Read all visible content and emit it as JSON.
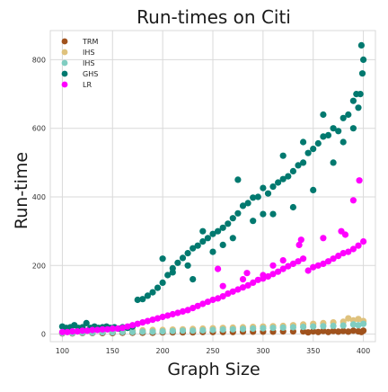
{
  "chart_data": {
    "type": "scatter",
    "title": "Run-times on Citi",
    "xlabel": "Graph Size",
    "ylabel": "Run-time",
    "xlim": [
      88,
      412
    ],
    "ylim": [
      -22,
      885
    ],
    "xticks": [
      100,
      150,
      200,
      250,
      300,
      350,
      400
    ],
    "yticks": [
      0,
      200,
      400,
      600,
      800
    ],
    "grid": true,
    "legend_position": "top-left",
    "series": [
      {
        "name": "TRM",
        "color": "#a0521d",
        "points": [
          [
            100,
            2
          ],
          [
            110,
            2
          ],
          [
            120,
            3
          ],
          [
            130,
            3
          ],
          [
            140,
            3
          ],
          [
            150,
            3
          ],
          [
            160,
            4
          ],
          [
            170,
            4
          ],
          [
            180,
            4
          ],
          [
            190,
            4
          ],
          [
            200,
            5
          ],
          [
            210,
            5
          ],
          [
            220,
            5
          ],
          [
            230,
            5
          ],
          [
            240,
            6
          ],
          [
            250,
            6
          ],
          [
            260,
            6
          ],
          [
            270,
            6
          ],
          [
            280,
            7
          ],
          [
            290,
            7
          ],
          [
            300,
            7
          ],
          [
            310,
            7
          ],
          [
            320,
            8
          ],
          [
            330,
            8
          ],
          [
            340,
            8
          ],
          [
            350,
            8
          ],
          [
            360,
            9
          ],
          [
            370,
            9
          ],
          [
            380,
            9
          ],
          [
            390,
            10
          ],
          [
            400,
            10
          ],
          [
            345,
            5
          ],
          [
            355,
            6
          ],
          [
            365,
            6
          ],
          [
            375,
            7
          ],
          [
            385,
            7
          ],
          [
            395,
            8
          ],
          [
            398,
            6
          ]
        ]
      },
      {
        "name": "IHS",
        "color": "#dfc27d",
        "points": [
          [
            100,
            4
          ],
          [
            110,
            5
          ],
          [
            120,
            6
          ],
          [
            130,
            6
          ],
          [
            140,
            7
          ],
          [
            150,
            8
          ],
          [
            160,
            9
          ],
          [
            170,
            10
          ],
          [
            180,
            11
          ],
          [
            190,
            12
          ],
          [
            200,
            12
          ],
          [
            210,
            13
          ],
          [
            220,
            14
          ],
          [
            230,
            15
          ],
          [
            240,
            16
          ],
          [
            250,
            17
          ],
          [
            260,
            18
          ],
          [
            270,
            19
          ],
          [
            280,
            20
          ],
          [
            290,
            21
          ],
          [
            300,
            22
          ],
          [
            310,
            23
          ],
          [
            320,
            24
          ],
          [
            330,
            26
          ],
          [
            340,
            28
          ],
          [
            350,
            30
          ],
          [
            360,
            32
          ],
          [
            370,
            34
          ],
          [
            380,
            36
          ],
          [
            390,
            40
          ],
          [
            400,
            38
          ],
          [
            385,
            46
          ],
          [
            395,
            44
          ]
        ]
      },
      {
        "name": "IHS",
        "color": "#80cdc1",
        "points": [
          [
            100,
            3
          ],
          [
            110,
            3
          ],
          [
            120,
            4
          ],
          [
            130,
            4
          ],
          [
            140,
            5
          ],
          [
            150,
            5
          ],
          [
            160,
            6
          ],
          [
            170,
            6
          ],
          [
            180,
            7
          ],
          [
            190,
            7
          ],
          [
            200,
            8
          ],
          [
            210,
            9
          ],
          [
            220,
            10
          ],
          [
            230,
            10
          ],
          [
            240,
            11
          ],
          [
            250,
            12
          ],
          [
            260,
            13
          ],
          [
            270,
            14
          ],
          [
            280,
            15
          ],
          [
            290,
            16
          ],
          [
            300,
            17
          ],
          [
            310,
            18
          ],
          [
            320,
            19
          ],
          [
            330,
            20
          ],
          [
            340,
            21
          ],
          [
            350,
            22
          ],
          [
            360,
            23
          ],
          [
            370,
            24
          ],
          [
            380,
            25
          ],
          [
            390,
            28
          ],
          [
            400,
            30
          ],
          [
            395,
            26
          ]
        ]
      },
      {
        "name": "GHS",
        "color": "#01796f",
        "points": [
          [
            100,
            22
          ],
          [
            104,
            18
          ],
          [
            108,
            20
          ],
          [
            112,
            26
          ],
          [
            116,
            18
          ],
          [
            120,
            20
          ],
          [
            124,
            32
          ],
          [
            128,
            18
          ],
          [
            132,
            22
          ],
          [
            136,
            18
          ],
          [
            140,
            20
          ],
          [
            144,
            22
          ],
          [
            148,
            18
          ],
          [
            152,
            20
          ],
          [
            156,
            16
          ],
          [
            160,
            20
          ],
          [
            165,
            18
          ],
          [
            170,
            22
          ],
          [
            175,
            100
          ],
          [
            180,
            102
          ],
          [
            185,
            112
          ],
          [
            190,
            122
          ],
          [
            195,
            135
          ],
          [
            200,
            150
          ],
          [
            205,
            172
          ],
          [
            210,
            192
          ],
          [
            215,
            208
          ],
          [
            220,
            222
          ],
          [
            225,
            236
          ],
          [
            230,
            250
          ],
          [
            235,
            258
          ],
          [
            240,
            270
          ],
          [
            245,
            280
          ],
          [
            250,
            292
          ],
          [
            255,
            300
          ],
          [
            260,
            310
          ],
          [
            265,
            322
          ],
          [
            270,
            338
          ],
          [
            275,
            352
          ],
          [
            280,
            374
          ],
          [
            285,
            382
          ],
          [
            290,
            398
          ],
          [
            295,
            400
          ],
          [
            300,
            426
          ],
          [
            305,
            410
          ],
          [
            310,
            430
          ],
          [
            315,
            442
          ],
          [
            320,
            452
          ],
          [
            325,
            460
          ],
          [
            330,
            475
          ],
          [
            335,
            492
          ],
          [
            340,
            500
          ],
          [
            345,
            528
          ],
          [
            350,
            540
          ],
          [
            355,
            556
          ],
          [
            360,
            576
          ],
          [
            365,
            580
          ],
          [
            370,
            600
          ],
          [
            375,
            592
          ],
          [
            380,
            630
          ],
          [
            385,
            640
          ],
          [
            390,
            680
          ],
          [
            393,
            700
          ],
          [
            395,
            660
          ],
          [
            397,
            700
          ],
          [
            399,
            760
          ],
          [
            400,
            800
          ],
          [
            398,
            842
          ],
          [
            210,
            180
          ],
          [
            230,
            160
          ],
          [
            250,
            240
          ],
          [
            270,
            280
          ],
          [
            290,
            330
          ],
          [
            310,
            350
          ],
          [
            330,
            370
          ],
          [
            350,
            420
          ],
          [
            370,
            500
          ],
          [
            390,
            600
          ],
          [
            320,
            520
          ],
          [
            340,
            560
          ],
          [
            360,
            640
          ],
          [
            275,
            450
          ],
          [
            225,
            200
          ],
          [
            200,
            220
          ],
          [
            240,
            300
          ],
          [
            260,
            260
          ],
          [
            300,
            350
          ],
          [
            380,
            560
          ]
        ]
      },
      {
        "name": "LR",
        "color": "#ff00ff",
        "points": [
          [
            100,
            6
          ],
          [
            105,
            6
          ],
          [
            110,
            8
          ],
          [
            115,
            8
          ],
          [
            120,
            10
          ],
          [
            125,
            10
          ],
          [
            130,
            12
          ],
          [
            135,
            12
          ],
          [
            140,
            14
          ],
          [
            145,
            14
          ],
          [
            150,
            16
          ],
          [
            155,
            16
          ],
          [
            160,
            18
          ],
          [
            165,
            22
          ],
          [
            170,
            26
          ],
          [
            175,
            30
          ],
          [
            180,
            34
          ],
          [
            185,
            38
          ],
          [
            190,
            42
          ],
          [
            195,
            46
          ],
          [
            200,
            50
          ],
          [
            205,
            54
          ],
          [
            210,
            58
          ],
          [
            215,
            62
          ],
          [
            220,
            66
          ],
          [
            225,
            70
          ],
          [
            230,
            76
          ],
          [
            235,
            82
          ],
          [
            240,
            88
          ],
          [
            245,
            94
          ],
          [
            250,
            100
          ],
          [
            255,
            104
          ],
          [
            260,
            110
          ],
          [
            265,
            118
          ],
          [
            270,
            124
          ],
          [
            275,
            130
          ],
          [
            280,
            136
          ],
          [
            285,
            142
          ],
          [
            290,
            150
          ],
          [
            295,
            158
          ],
          [
            300,
            162
          ],
          [
            305,
            168
          ],
          [
            310,
            175
          ],
          [
            315,
            182
          ],
          [
            320,
            190
          ],
          [
            325,
            198
          ],
          [
            330,
            205
          ],
          [
            335,
            212
          ],
          [
            340,
            220
          ],
          [
            345,
            185
          ],
          [
            350,
            195
          ],
          [
            355,
            200
          ],
          [
            360,
            205
          ],
          [
            365,
            212
          ],
          [
            370,
            220
          ],
          [
            375,
            228
          ],
          [
            380,
            236
          ],
          [
            385,
            240
          ],
          [
            390,
            248
          ],
          [
            395,
            258
          ],
          [
            400,
            270
          ],
          [
            260,
            140
          ],
          [
            280,
            160
          ],
          [
            300,
            172
          ],
          [
            310,
            200
          ],
          [
            320,
            215
          ],
          [
            336,
            260
          ],
          [
            338,
            275
          ],
          [
            360,
            280
          ],
          [
            378,
            300
          ],
          [
            382,
            290
          ],
          [
            390,
            390
          ],
          [
            396,
            448
          ],
          [
            255,
            190
          ],
          [
            284,
            178
          ]
        ]
      }
    ]
  }
}
